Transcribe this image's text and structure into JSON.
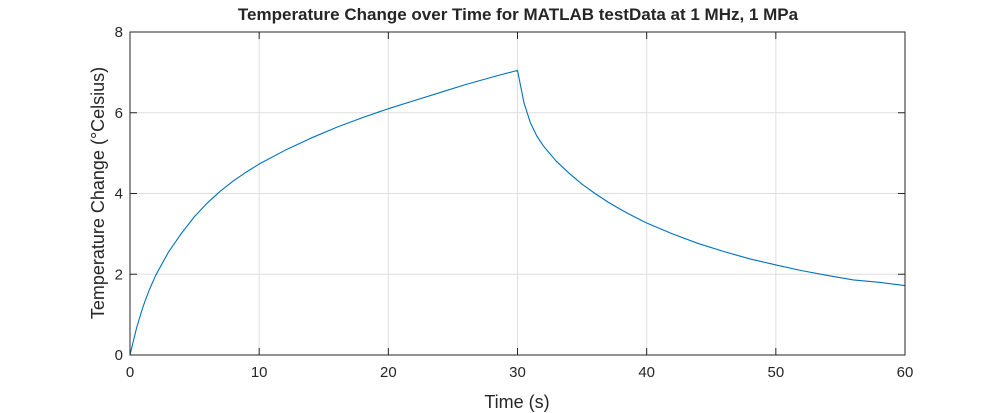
{
  "chart_data": {
    "type": "line",
    "title": "Temperature Change over Time for MATLAB testData at 1 MHz, 1 MPa",
    "xlabel": "Time (s)",
    "ylabel": "Temperature Change (°Celsius)",
    "xlim": [
      0,
      60
    ],
    "ylim": [
      0,
      8
    ],
    "xticks": [
      0,
      10,
      20,
      30,
      40,
      50,
      60
    ],
    "yticks": [
      0,
      2,
      4,
      6,
      8
    ],
    "xtick_labels": [
      "0",
      "10",
      "20",
      "30",
      "40",
      "50",
      "60"
    ],
    "ytick_labels": [
      "0",
      "2",
      "4",
      "6",
      "8"
    ],
    "grid": true,
    "box": true,
    "series": [
      {
        "color": "#0072BD",
        "x": [
          0,
          0.25,
          0.5,
          1,
          1.5,
          2,
          3,
          4,
          5,
          6,
          7,
          8,
          9,
          10,
          12,
          14,
          16,
          18,
          20,
          22,
          24,
          26,
          28,
          30,
          30.5,
          31,
          31.5,
          32,
          33,
          34,
          35,
          36,
          37,
          38,
          39,
          40,
          42,
          44,
          46,
          48,
          50,
          52,
          54,
          56,
          58,
          60
        ],
        "y": [
          0,
          0.33,
          0.66,
          1.19,
          1.62,
          1.98,
          2.56,
          3.02,
          3.43,
          3.77,
          4.06,
          4.31,
          4.53,
          4.73,
          5.07,
          5.37,
          5.64,
          5.88,
          6.1,
          6.3,
          6.5,
          6.7,
          6.88,
          7.05,
          6.25,
          5.75,
          5.42,
          5.18,
          4.8,
          4.5,
          4.23,
          4.0,
          3.79,
          3.6,
          3.43,
          3.27,
          3.0,
          2.76,
          2.56,
          2.38,
          2.23,
          2.09,
          1.97,
          1.86,
          1.8,
          1.72
        ]
      }
    ]
  }
}
